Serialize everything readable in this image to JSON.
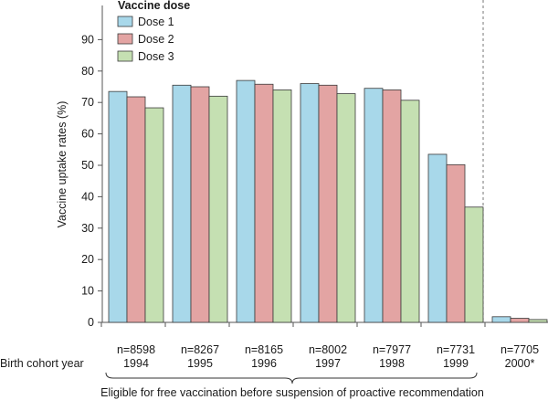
{
  "chart_data": {
    "type": "bar",
    "ylabel": "Vaccine uptake rates (%)",
    "xlabel": "Birth cohort year",
    "ylim": [
      0,
      100
    ],
    "yticks": [
      0,
      10,
      20,
      30,
      40,
      50,
      60,
      70,
      80,
      90
    ],
    "legend": {
      "title": "Vaccine dose",
      "position": "top-left"
    },
    "categories": [
      {
        "n": "n=8598",
        "year": "1994"
      },
      {
        "n": "n=8267",
        "year": "1995"
      },
      {
        "n": "n=8165",
        "year": "1996"
      },
      {
        "n": "n=8002",
        "year": "1997"
      },
      {
        "n": "n=7977",
        "year": "1998"
      },
      {
        "n": "n=7731",
        "year": "1999"
      },
      {
        "n": "n=7705",
        "year": "2000*"
      }
    ],
    "series": [
      {
        "name": "Dose 1",
        "color": "#a8d8ea",
        "values": [
          73.5,
          75.5,
          77.0,
          76.0,
          74.5,
          53.5,
          1.8
        ]
      },
      {
        "name": "Dose 2",
        "color": "#e3a4a3",
        "values": [
          71.8,
          75.0,
          75.8,
          75.5,
          74.0,
          50.2,
          1.3
        ]
      },
      {
        "name": "Dose 3",
        "color": "#c5e0b2",
        "values": [
          68.3,
          72.0,
          74.0,
          72.8,
          70.7,
          36.7,
          0.9
        ]
      }
    ],
    "bracket_label": "Eligible for free vaccination before suspension of proactive recommendation",
    "divider": "dashed line before 2000* cohort"
  }
}
